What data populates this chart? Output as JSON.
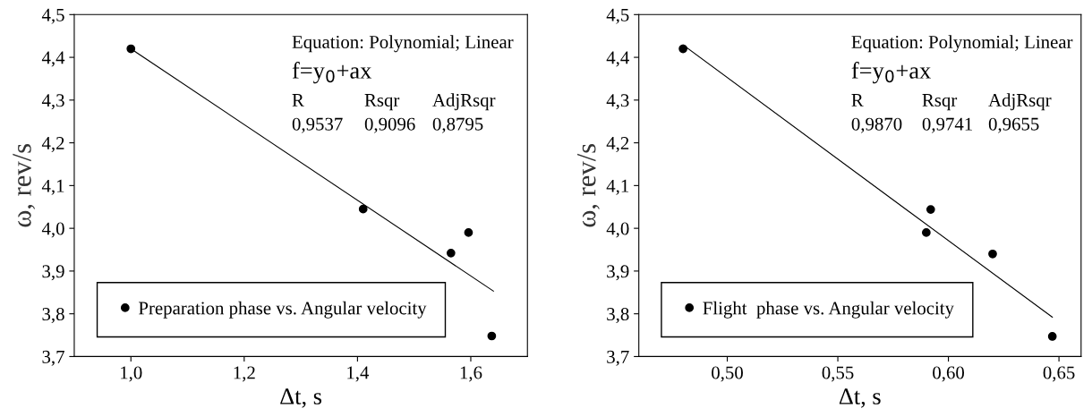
{
  "chart_data": [
    {
      "type": "scatter",
      "xlabel": "Δt, s",
      "ylabel": "ω, rev/s",
      "xlim": [
        0.9,
        1.7
      ],
      "ylim": [
        3.7,
        4.5
      ],
      "xticks": [
        {
          "value": 1.0,
          "label": "1,0"
        },
        {
          "value": 1.2,
          "label": "1,2"
        },
        {
          "value": 1.4,
          "label": "1,4"
        },
        {
          "value": 1.6,
          "label": "1,6"
        }
      ],
      "yticks": [
        {
          "value": 3.7,
          "label": "3,7"
        },
        {
          "value": 3.8,
          "label": "3,8"
        },
        {
          "value": 3.9,
          "label": "3,9"
        },
        {
          "value": 4.0,
          "label": "4,0"
        },
        {
          "value": 4.1,
          "label": "4,1"
        },
        {
          "value": 4.2,
          "label": "4,2"
        },
        {
          "value": 4.3,
          "label": "4,3"
        },
        {
          "value": 4.4,
          "label": "4,4"
        },
        {
          "value": 4.5,
          "label": "4,5"
        }
      ],
      "series": [
        {
          "name": "Preparation phase vs. Angular velocity",
          "marker": "circle",
          "color": "#000000",
          "x": [
            1.0,
            1.41,
            1.565,
            1.596,
            1.637
          ],
          "values": [
            4.42,
            4.045,
            3.942,
            3.99,
            3.748
          ]
        },
        {
          "type": "line",
          "marker": "none",
          "color": "#000000",
          "x": [
            1.0,
            1.64
          ],
          "values": [
            4.42,
            3.853
          ]
        }
      ],
      "line_style": "solid",
      "grid": false,
      "legend": "bottom left",
      "annotations": [
        "Equation: Polynomial; Linear",
        "f=y$_{0}$+ax",
        "R",
        "Rsqr",
        "AdjRsqr",
        "0,9537",
        "0,9096",
        "0,8795"
      ]
    },
    {
      "type": "scatter",
      "xlabel": "Δt, s",
      "ylabel": "ω, rev/s",
      "xlim": [
        0.46,
        0.66
      ],
      "ylim": [
        3.7,
        4.5
      ],
      "xticks": [
        {
          "value": 0.5,
          "label": "0,50"
        },
        {
          "value": 0.55,
          "label": "0,55"
        },
        {
          "value": 0.6,
          "label": "0,60"
        },
        {
          "value": 0.65,
          "label": "0,65"
        }
      ],
      "yticks": [
        {
          "value": 3.7,
          "label": "3,7"
        },
        {
          "value": 3.8,
          "label": "3,8"
        },
        {
          "value": 3.9,
          "label": "3,9"
        },
        {
          "value": 4.0,
          "label": "4,0"
        },
        {
          "value": 4.1,
          "label": "4,1"
        },
        {
          "value": 4.2,
          "label": "4,2"
        },
        {
          "value": 4.3,
          "label": "4,3"
        },
        {
          "value": 4.4,
          "label": "4,4"
        },
        {
          "value": 4.5,
          "label": "4,5"
        }
      ],
      "series": [
        {
          "name": "Flight  phase vs. Angular velocity",
          "marker": "circle",
          "color": "#000000",
          "x": [
            0.48,
            0.59,
            0.592,
            0.62,
            0.647
          ],
          "values": [
            4.42,
            3.99,
            4.044,
            3.94,
            3.747
          ]
        },
        {
          "type": "line",
          "marker": "none",
          "color": "#000000",
          "x": [
            0.48,
            0.647
          ],
          "values": [
            4.429,
            3.792
          ]
        }
      ],
      "line_style": "solid",
      "grid": false,
      "legend": "bottom left",
      "annotations": [
        "Equation: Polynomial; Linear",
        "f=y$_{0}$+ax",
        "R",
        "Rsqr",
        "AdjRsqr",
        "0,9870",
        "0,9741",
        "0,9655"
      ]
    }
  ]
}
